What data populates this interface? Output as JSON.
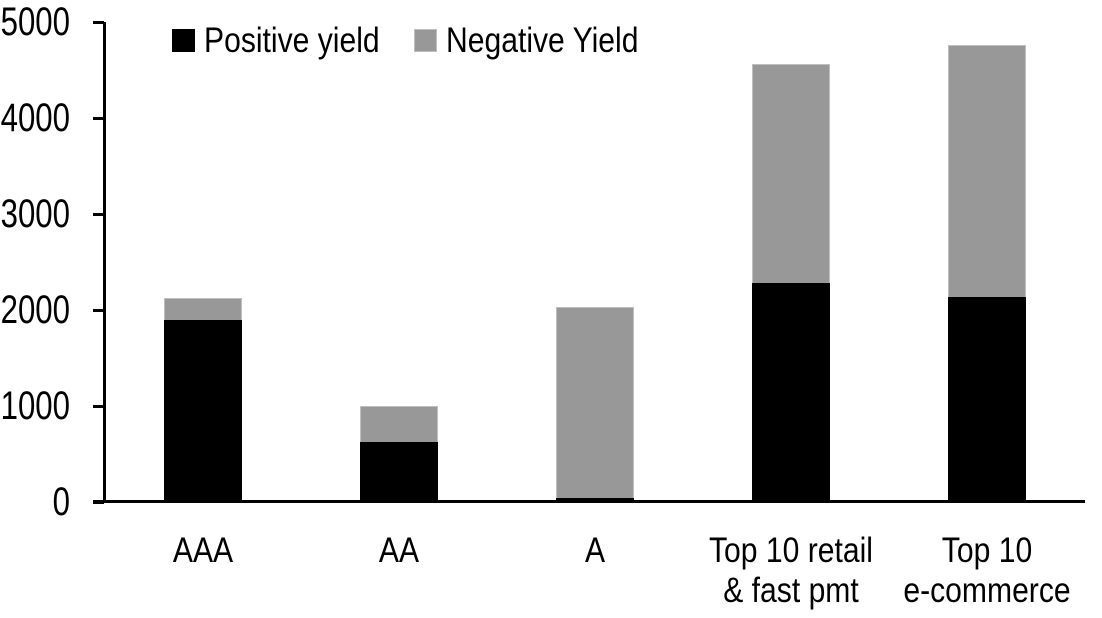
{
  "chart_data": {
    "type": "bar",
    "stacked": true,
    "categories": [
      "AAA",
      "AA",
      "A",
      "Top 10 retail\n& fast pmt",
      "Top 10\ne-commerce"
    ],
    "series": [
      {
        "name": "Positive yield",
        "color": "#000000",
        "values": [
          1900,
          620,
          40,
          2280,
          2140
        ]
      },
      {
        "name": "Negative Yield",
        "color": "#989898",
        "values": [
          220,
          380,
          1990,
          2280,
          2620
        ]
      }
    ],
    "ylim": [
      0,
      5000
    ],
    "ytick_step": 1000,
    "ytick_labels": [
      "0",
      "1000",
      "2000",
      "3000",
      "4000",
      "5000"
    ],
    "grid": false,
    "legend_position": "top-inside",
    "axis_color": "#000000",
    "segment_border_color": "#bfbfbf",
    "background_color": "#ffffff"
  }
}
